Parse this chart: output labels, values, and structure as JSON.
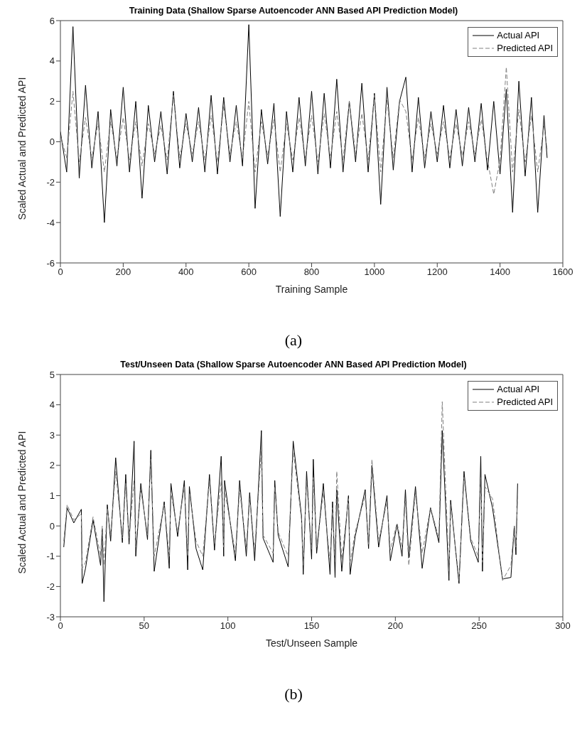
{
  "chart_data": [
    {
      "type": "line",
      "title": "Training Data (Shallow Sparse Autoencoder ANN Based API Prediction Model)",
      "xlabel": "Training Sample",
      "ylabel": "Scaled Actual and Predicted API",
      "annotations": [
        "(a)"
      ],
      "x": [
        0,
        20,
        40,
        60,
        80,
        100,
        120,
        140,
        160,
        180,
        200,
        220,
        240,
        260,
        280,
        300,
        320,
        340,
        360,
        380,
        400,
        420,
        440,
        460,
        480,
        500,
        520,
        540,
        560,
        580,
        600,
        620,
        640,
        660,
        680,
        700,
        720,
        740,
        760,
        780,
        800,
        820,
        840,
        860,
        880,
        900,
        920,
        940,
        960,
        980,
        1000,
        1020,
        1040,
        1060,
        1080,
        1100,
        1120,
        1140,
        1160,
        1180,
        1200,
        1220,
        1240,
        1260,
        1280,
        1300,
        1320,
        1340,
        1360,
        1380,
        1400,
        1420,
        1440,
        1460,
        1480,
        1500,
        1520,
        1540,
        1550
      ],
      "series": [
        {
          "name": "Actual API",
          "color": "#000000",
          "line_style": "solid",
          "values": [
            0.5,
            -1.5,
            5.7,
            -1.8,
            2.8,
            -1.3,
            1.5,
            -4.0,
            1.6,
            -1.2,
            2.7,
            -1.5,
            2.0,
            -2.8,
            1.8,
            -1.0,
            1.5,
            -1.6,
            2.5,
            -1.3,
            1.4,
            -1.0,
            1.7,
            -1.5,
            2.3,
            -1.6,
            2.2,
            -1.0,
            1.8,
            -1.2,
            5.8,
            -3.3,
            1.6,
            -1.1,
            1.9,
            -3.7,
            1.5,
            -1.5,
            2.2,
            -1.2,
            2.5,
            -1.6,
            2.4,
            -1.3,
            3.1,
            -1.5,
            2.0,
            -1.0,
            2.9,
            -1.5,
            2.4,
            -3.1,
            2.7,
            -1.4,
            2.0,
            3.2,
            -1.5,
            2.2,
            -1.3,
            1.5,
            -1.0,
            1.8,
            -1.3,
            1.6,
            -1.2,
            1.7,
            -1.0,
            1.9,
            -1.4,
            2.0,
            -1.6,
            2.6,
            -3.5,
            3.0,
            -1.7,
            2.2,
            -3.5,
            1.3,
            -0.8
          ]
        },
        {
          "name": "Predicted API",
          "color": "#808080",
          "line_style": "dashed",
          "values": [
            0.3,
            -0.8,
            2.5,
            -1.0,
            1.2,
            -0.8,
            0.9,
            -1.5,
            1.0,
            -0.8,
            1.2,
            -0.9,
            1.0,
            -1.2,
            0.9,
            -0.6,
            0.8,
            -0.9,
            2.3,
            -0.8,
            0.9,
            -0.6,
            1.0,
            -0.9,
            1.3,
            -1.0,
            1.8,
            -0.6,
            1.0,
            -0.8,
            2.0,
            -1.5,
            1.0,
            -0.7,
            1.1,
            -1.5,
            0.9,
            -0.9,
            1.2,
            -0.8,
            1.3,
            -1.0,
            1.4,
            -0.8,
            1.5,
            -0.9,
            2.0,
            -0.6,
            1.4,
            -0.9,
            2.3,
            -1.5,
            2.1,
            -0.8,
            2.1,
            1.5,
            -0.9,
            1.2,
            -0.8,
            0.9,
            -0.6,
            1.0,
            -0.8,
            0.9,
            -0.7,
            1.0,
            -0.6,
            1.1,
            -0.9,
            -2.6,
            -0.9,
            3.7,
            -1.5,
            1.6,
            -1.0,
            1.3,
            -1.5,
            0.8,
            -0.4
          ]
        }
      ],
      "xlim": [
        0,
        1600
      ],
      "xticks": [
        0,
        200,
        400,
        600,
        800,
        1000,
        1200,
        1400,
        1600
      ],
      "ylim": [
        -6,
        6
      ],
      "yticks": [
        -6,
        -4,
        -2,
        0,
        2,
        4,
        6
      ],
      "legend": "top right",
      "marker": "none"
    },
    {
      "type": "line",
      "title": "Test/Unseen Data (Shallow Sparse Autoencoder ANN Based API Prediction Model)",
      "xlabel": "Test/Unseen Sample",
      "ylabel": "Scaled Actual and Predicted API",
      "annotations": [
        "(b)"
      ],
      "x": [
        2,
        4,
        8,
        12.5,
        13,
        15,
        19.5,
        24,
        25,
        26,
        28,
        30,
        33,
        37,
        39,
        41,
        44,
        45,
        48,
        52,
        54,
        56,
        62,
        65,
        66,
        70,
        74,
        76,
        77,
        81,
        85,
        89,
        92,
        96,
        97.5,
        98,
        104.5,
        107,
        111,
        113,
        116,
        120,
        121,
        127,
        128,
        130,
        136,
        139,
        144,
        145,
        147,
        150,
        151,
        153,
        157,
        161,
        162.5,
        164,
        165,
        168,
        172,
        173,
        176,
        182,
        184,
        186,
        190,
        195,
        197,
        201,
        204,
        206,
        208,
        212,
        216,
        221,
        226,
        228,
        232,
        233,
        238,
        241,
        245,
        249.5,
        251,
        252,
        253.5,
        258,
        264,
        269,
        271,
        272,
        273
      ],
      "series": [
        {
          "name": "Actual API",
          "color": "#000000",
          "line_style": "solid",
          "values": [
            -0.7,
            0.6,
            0.1,
            0.55,
            -1.9,
            -1.4,
            0.2,
            -1.3,
            -0.1,
            -2.5,
            0.7,
            -0.5,
            2.25,
            -0.55,
            1.7,
            -0.6,
            2.8,
            -1.0,
            1.4,
            -0.45,
            2.5,
            -1.5,
            0.8,
            -1.4,
            1.4,
            -0.35,
            1.5,
            -1.45,
            1.3,
            -0.75,
            -1.45,
            1.7,
            -0.8,
            2.3,
            -1.0,
            1.5,
            -1.15,
            1.5,
            -1.0,
            1.1,
            -1.15,
            3.15,
            -0.4,
            -1.2,
            1.5,
            -0.3,
            -1.35,
            2.8,
            0.3,
            -1.6,
            1.8,
            -1.1,
            2.2,
            -0.9,
            1.4,
            -1.6,
            0.8,
            -1.7,
            1.2,
            -1.5,
            1.0,
            -1.6,
            -0.35,
            1.2,
            -0.75,
            2.0,
            -0.7,
            1.0,
            -1.15,
            0.05,
            -1.0,
            1.2,
            -1.05,
            1.3,
            -1.4,
            0.6,
            -0.55,
            3.15,
            -1.8,
            0.85,
            -1.9,
            1.8,
            -0.5,
            -1.2,
            2.3,
            -1.5,
            1.7,
            0.6,
            -1.75,
            -1.7,
            0,
            -0.95,
            1.4
          ]
        },
        {
          "name": "Predicted API",
          "color": "#808080",
          "line_style": "dashed",
          "values": [
            -0.5,
            0.7,
            0.2,
            0.4,
            -1.4,
            -1.2,
            0.3,
            -1.0,
            0.0,
            -1.3,
            0.6,
            -0.3,
            1.8,
            -0.4,
            1.4,
            -0.4,
            1.5,
            -0.7,
            1.2,
            -0.3,
            2.2,
            -1.0,
            0.7,
            -1.0,
            1.1,
            -0.2,
            1.3,
            -1.0,
            1.1,
            -0.5,
            -1.0,
            1.5,
            -0.6,
            1.5,
            -0.7,
            1.2,
            -0.9,
            1.2,
            -0.7,
            0.9,
            -0.8,
            2.5,
            -0.3,
            -0.9,
            1.3,
            -0.2,
            -1.0,
            2.5,
            0.2,
            -1.3,
            1.5,
            -0.8,
            1.6,
            -0.7,
            1.1,
            -1.2,
            0.6,
            -1.2,
            1.8,
            -1.1,
            0.9,
            -1.2,
            -0.2,
            1.0,
            -0.6,
            2.2,
            -0.5,
            0.8,
            -0.8,
            0.1,
            -0.7,
            0.9,
            -1.3,
            1.1,
            -0.9,
            0.6,
            -0.4,
            4.1,
            -1.5,
            0.7,
            -1.8,
            1.6,
            -0.4,
            -1.0,
            1.6,
            -1.2,
            1.3,
            0.9,
            -1.8,
            -1.3,
            0.0,
            -0.7,
            1.0
          ]
        }
      ],
      "xlim": [
        0,
        300
      ],
      "xticks": [
        0,
        50,
        100,
        150,
        200,
        250,
        300
      ],
      "ylim": [
        -3,
        5
      ],
      "yticks": [
        -3,
        -2,
        -1,
        0,
        1,
        2,
        3,
        4,
        5
      ],
      "legend": "top right",
      "marker": "none"
    }
  ]
}
